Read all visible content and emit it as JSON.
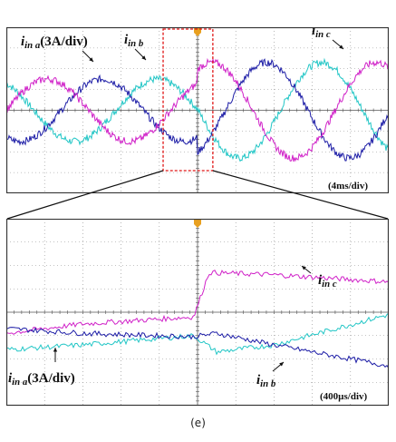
{
  "figure_label": "(e)",
  "colors": {
    "phase_a": "#22c6c6",
    "phase_b": "#1c1ca6",
    "phase_c": "#d021c8",
    "grid": "#8a8a8a",
    "frame": "#333333",
    "zoom_box": "#e01515",
    "trigger": "#e8a020"
  },
  "icons": {
    "trigger": "trigger-marker-icon"
  },
  "chart_data": [
    {
      "type": "line",
      "title": "",
      "time_scale_label": "(4ms/div)",
      "x_divisions": 10,
      "y_divisions": 8,
      "time_per_div_ms": 4,
      "current_per_div_A": 3,
      "annotations": {
        "a": {
          "sym": "i",
          "sub": "in a",
          "suffix": "(3A/div)"
        },
        "b": {
          "sym": "i",
          "sub": "in b",
          "suffix": ""
        },
        "c": {
          "sym": "i",
          "sub": "in c",
          "suffix": ""
        }
      },
      "series": [
        {
          "key": "a",
          "period_div": 4.3,
          "phase_deg": 120,
          "amp_div": 1.5,
          "amp_after_div": 2.3,
          "offset_div": 0
        },
        {
          "key": "b",
          "period_div": 4.3,
          "phase_deg": 240,
          "amp_div": 1.5,
          "amp_after_div": 2.3,
          "offset_div": 0
        },
        {
          "key": "c",
          "period_div": 4.3,
          "phase_deg": 0,
          "amp_div": 1.5,
          "amp_after_div": 2.3,
          "offset_div": 0
        }
      ],
      "step_at_div": 5,
      "zoom_window_div": [
        4.1,
        5.4
      ]
    },
    {
      "type": "line",
      "title": "",
      "time_scale_label": "(400µs/div)",
      "x_divisions": 10,
      "y_divisions": 8,
      "time_per_div_us": 400,
      "current_per_div_A": 3,
      "annotations": {
        "a": {
          "sym": "i",
          "sub": "in a",
          "suffix": "(3A/div)"
        },
        "b": {
          "sym": "i",
          "sub": "in b",
          "suffix": ""
        },
        "c": {
          "sym": "i",
          "sub": "in c",
          "suffix": ""
        }
      },
      "series": [
        {
          "key": "c",
          "points_div": [
            [
              0,
              -0.9
            ],
            [
              2,
              -0.5
            ],
            [
              4.9,
              -0.2
            ],
            [
              5.3,
              1.7
            ],
            [
              7,
              1.6
            ],
            [
              10,
              1.3
            ]
          ]
        },
        {
          "key": "a",
          "points_div": [
            [
              0,
              -1.6
            ],
            [
              2,
              -1.4
            ],
            [
              4.9,
              -1.0
            ],
            [
              5.5,
              -1.7
            ],
            [
              7,
              -1.4
            ],
            [
              10,
              -0.1
            ]
          ]
        },
        {
          "key": "b",
          "points_div": [
            [
              0,
              -0.7
            ],
            [
              2,
              -0.9
            ],
            [
              4.9,
              -1.05
            ],
            [
              5.5,
              -0.9
            ],
            [
              7,
              -1.4
            ],
            [
              10,
              -2.3
            ]
          ]
        }
      ]
    }
  ]
}
